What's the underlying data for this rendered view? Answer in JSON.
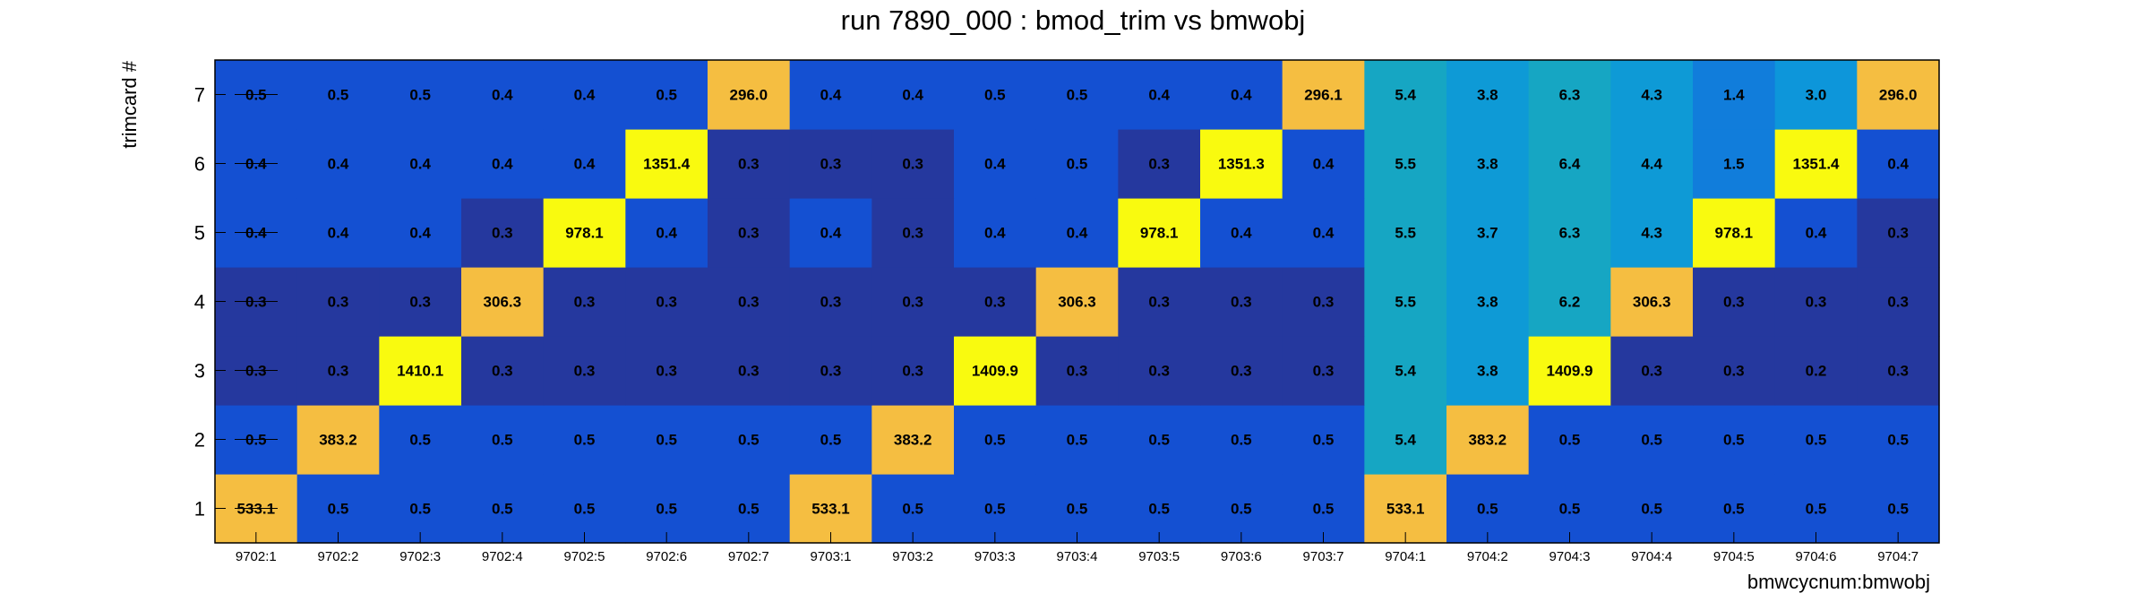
{
  "chart_data": {
    "type": "heatmap",
    "title": "run 7890_000 : bmod_trim vs bmwobj",
    "xlabel": "bmwcycnum:bmwobj",
    "ylabel": "trimcard #",
    "x_categories": [
      "9702:1",
      "9702:2",
      "9702:3",
      "9702:4",
      "9702:5",
      "9702:6",
      "9702:7",
      "9703:1",
      "9703:2",
      "9703:3",
      "9703:4",
      "9703:5",
      "9703:6",
      "9703:7",
      "9704:1",
      "9704:2",
      "9704:3",
      "9704:4",
      "9704:5",
      "9704:6",
      "9704:7"
    ],
    "y_categories": [
      "1",
      "2",
      "3",
      "4",
      "5",
      "6",
      "7"
    ],
    "values": [
      [
        "533.1",
        "0.5",
        "0.5",
        "0.5",
        "0.5",
        "0.5",
        "0.5",
        "533.1",
        "0.5",
        "0.5",
        "0.5",
        "0.5",
        "0.5",
        "0.5",
        "533.1",
        "0.5",
        "0.5",
        "0.5",
        "0.5",
        "0.5",
        "0.5"
      ],
      [
        "0.5",
        "383.2",
        "0.5",
        "0.5",
        "0.5",
        "0.5",
        "0.5",
        "0.5",
        "383.2",
        "0.5",
        "0.5",
        "0.5",
        "0.5",
        "0.5",
        "5.4",
        "383.2",
        "0.5",
        "0.5",
        "0.5",
        "0.5",
        "0.5"
      ],
      [
        "0.3",
        "0.3",
        "1410.1",
        "0.3",
        "0.3",
        "0.3",
        "0.3",
        "0.3",
        "0.3",
        "1409.9",
        "0.3",
        "0.3",
        "0.3",
        "0.3",
        "5.4",
        "3.8",
        "1409.9",
        "0.3",
        "0.3",
        "0.2",
        "0.3"
      ],
      [
        "0.3",
        "0.3",
        "0.3",
        "306.3",
        "0.3",
        "0.3",
        "0.3",
        "0.3",
        "0.3",
        "0.3",
        "306.3",
        "0.3",
        "0.3",
        "0.3",
        "5.5",
        "3.8",
        "6.2",
        "306.3",
        "0.3",
        "0.3",
        "0.3"
      ],
      [
        "0.4",
        "0.4",
        "0.4",
        "0.3",
        "978.1",
        "0.4",
        "0.3",
        "0.4",
        "0.3",
        "0.4",
        "0.4",
        "978.1",
        "0.4",
        "0.4",
        "5.5",
        "3.7",
        "6.3",
        "4.3",
        "978.1",
        "0.4",
        "0.3"
      ],
      [
        "0.4",
        "0.4",
        "0.4",
        "0.4",
        "0.4",
        "1351.4",
        "0.3",
        "0.3",
        "0.3",
        "0.4",
        "0.5",
        "0.3",
        "1351.3",
        "0.4",
        "5.5",
        "3.8",
        "6.4",
        "4.4",
        "1.5",
        "1351.4",
        "0.4"
      ],
      [
        "0.5",
        "0.5",
        "0.5",
        "0.4",
        "0.4",
        "0.5",
        "296.0",
        "0.4",
        "0.4",
        "0.5",
        "0.5",
        "0.4",
        "0.4",
        "296.1",
        "5.4",
        "3.8",
        "6.3",
        "4.3",
        "1.4",
        "3.0",
        "296.0"
      ]
    ],
    "colors": {
      "low_dark": "#25389e",
      "low_mid": "#1450d2",
      "mid_blue": "#1882d8",
      "mid_sky": "#109ed2",
      "mid_teal": "#16a6c3",
      "high_orange": "#f5be41",
      "max_yellow": "#f9fa0f"
    }
  }
}
